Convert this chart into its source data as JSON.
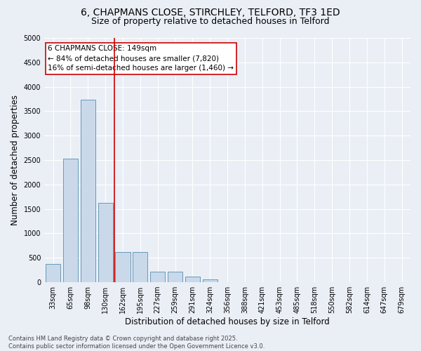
{
  "title1": "6, CHAPMANS CLOSE, STIRCHLEY, TELFORD, TF3 1ED",
  "title2": "Size of property relative to detached houses in Telford",
  "xlabel": "Distribution of detached houses by size in Telford",
  "ylabel": "Number of detached properties",
  "categories": [
    "33sqm",
    "65sqm",
    "98sqm",
    "130sqm",
    "162sqm",
    "195sqm",
    "227sqm",
    "259sqm",
    "291sqm",
    "324sqm",
    "356sqm",
    "388sqm",
    "421sqm",
    "453sqm",
    "485sqm",
    "518sqm",
    "550sqm",
    "582sqm",
    "614sqm",
    "647sqm",
    "679sqm"
  ],
  "values": [
    380,
    2530,
    3730,
    1620,
    620,
    620,
    220,
    220,
    120,
    60,
    0,
    0,
    0,
    0,
    0,
    0,
    0,
    0,
    0,
    0,
    0
  ],
  "bar_color": "#c9d9ea",
  "bar_edge_color": "#6699bb",
  "vline_color": "#cc0000",
  "vline_x_index": 3,
  "annotation_text": "6 CHAPMANS CLOSE: 149sqm\n← 84% of detached houses are smaller (7,820)\n16% of semi-detached houses are larger (1,460) →",
  "annotation_box_color": "#ffffff",
  "annotation_box_edge": "#cc0000",
  "ylim": [
    0,
    5000
  ],
  "yticks": [
    0,
    500,
    1000,
    1500,
    2000,
    2500,
    3000,
    3500,
    4000,
    4500,
    5000
  ],
  "bg_color": "#eaeff6",
  "grid_color": "#ffffff",
  "footer": "Contains HM Land Registry data © Crown copyright and database right 2025.\nContains public sector information licensed under the Open Government Licence v3.0.",
  "title_fontsize": 10,
  "subtitle_fontsize": 9,
  "tick_fontsize": 7,
  "label_fontsize": 8.5,
  "annotation_fontsize": 7.5,
  "footer_fontsize": 6
}
